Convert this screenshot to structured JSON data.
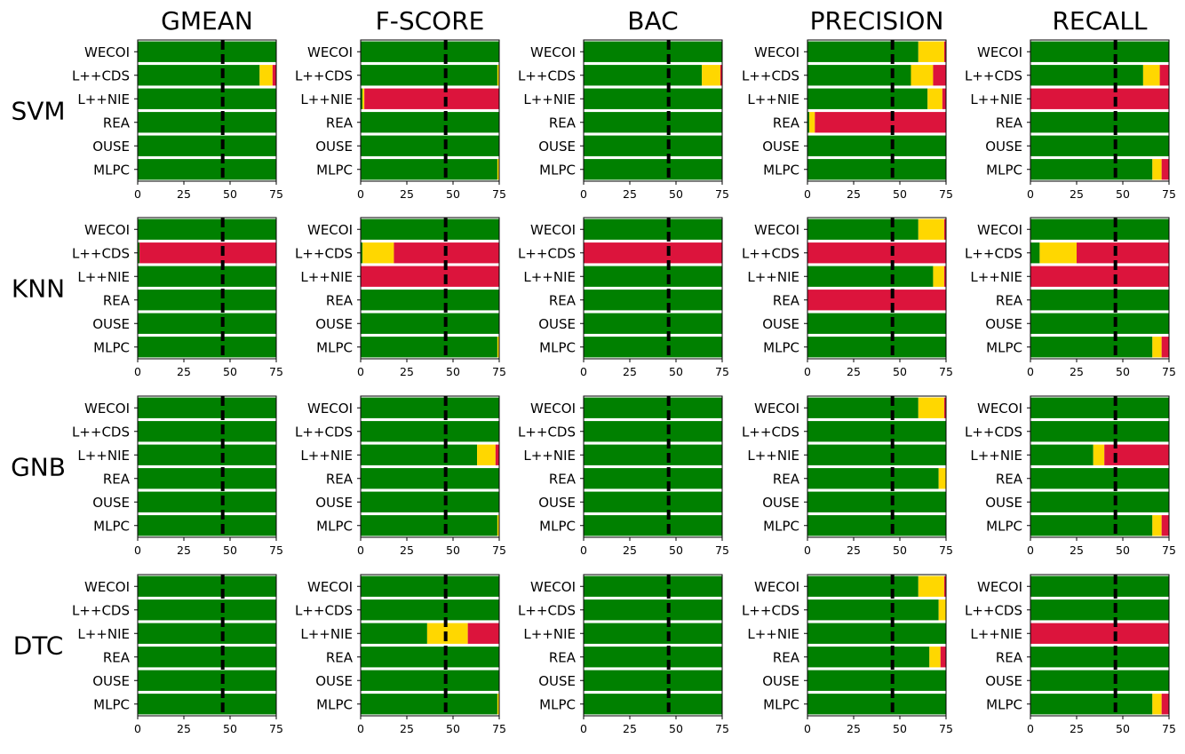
{
  "chart_data": {
    "type": "bar",
    "orientation": "horizontal-stacked",
    "columns": [
      "GMEAN",
      "F-SCORE",
      "BAC",
      "PRECISION",
      "RECALL"
    ],
    "rows": [
      "SVM",
      "KNN",
      "GNB",
      "DTC"
    ],
    "categories": [
      "WECOI",
      "L++CDS",
      "L++NIE",
      "REA",
      "OUSE",
      "MLPC"
    ],
    "segment_colors": [
      "#008000",
      "#FFD700",
      "#DC143C"
    ],
    "threshold_color": "#000000",
    "xlim": [
      0,
      75
    ],
    "xticks": [
      "0",
      "25",
      "50",
      "75"
    ],
    "threshold": 46,
    "grid": false,
    "panels": {
      "SVM": {
        "GMEAN": [
          [
            75,
            0,
            0
          ],
          [
            66,
            7,
            2
          ],
          [
            75,
            0,
            0
          ],
          [
            75,
            0,
            0
          ],
          [
            75,
            0,
            0
          ],
          [
            75,
            0,
            0
          ]
        ],
        "F-SCORE": [
          [
            75,
            0,
            0
          ],
          [
            74,
            1,
            0
          ],
          [
            1,
            1,
            73
          ],
          [
            75,
            0,
            0
          ],
          [
            75,
            0,
            0
          ],
          [
            74,
            1,
            0
          ]
        ],
        "BAC": [
          [
            75,
            0,
            0
          ],
          [
            64,
            10,
            1
          ],
          [
            75,
            0,
            0
          ],
          [
            75,
            0,
            0
          ],
          [
            75,
            0,
            0
          ],
          [
            75,
            0,
            0
          ]
        ],
        "PRECISION": [
          [
            60,
            14,
            1
          ],
          [
            56,
            12,
            7
          ],
          [
            65,
            8,
            2
          ],
          [
            1,
            3,
            71
          ],
          [
            75,
            0,
            0
          ],
          [
            75,
            0,
            0
          ]
        ],
        "RECALL": [
          [
            75,
            0,
            0
          ],
          [
            61,
            9,
            5
          ],
          [
            0,
            0,
            75
          ],
          [
            75,
            0,
            0
          ],
          [
            75,
            0,
            0
          ],
          [
            66,
            5,
            4
          ]
        ]
      },
      "KNN": {
        "GMEAN": [
          [
            75,
            0,
            0
          ],
          [
            1,
            0,
            74
          ],
          [
            75,
            0,
            0
          ],
          [
            75,
            0,
            0
          ],
          [
            75,
            0,
            0
          ],
          [
            75,
            0,
            0
          ]
        ],
        "F-SCORE": [
          [
            75,
            0,
            0
          ],
          [
            1,
            17,
            57
          ],
          [
            0,
            0,
            75
          ],
          [
            75,
            0,
            0
          ],
          [
            75,
            0,
            0
          ],
          [
            74,
            1,
            0
          ]
        ],
        "BAC": [
          [
            75,
            0,
            0
          ],
          [
            0,
            0,
            75
          ],
          [
            75,
            0,
            0
          ],
          [
            75,
            0,
            0
          ],
          [
            75,
            0,
            0
          ],
          [
            75,
            0,
            0
          ]
        ],
        "PRECISION": [
          [
            60,
            14,
            1
          ],
          [
            0,
            0,
            75
          ],
          [
            68,
            6,
            1
          ],
          [
            0,
            0,
            75
          ],
          [
            75,
            0,
            0
          ],
          [
            75,
            0,
            0
          ]
        ],
        "RECALL": [
          [
            75,
            0,
            0
          ],
          [
            5,
            20,
            50
          ],
          [
            0,
            0,
            75
          ],
          [
            75,
            0,
            0
          ],
          [
            75,
            0,
            0
          ],
          [
            66,
            5,
            4
          ]
        ]
      },
      "GNB": {
        "GMEAN": [
          [
            75,
            0,
            0
          ],
          [
            75,
            0,
            0
          ],
          [
            75,
            0,
            0
          ],
          [
            75,
            0,
            0
          ],
          [
            75,
            0,
            0
          ],
          [
            75,
            0,
            0
          ]
        ],
        "F-SCORE": [
          [
            75,
            0,
            0
          ],
          [
            75,
            0,
            0
          ],
          [
            63,
            10,
            2
          ],
          [
            75,
            0,
            0
          ],
          [
            75,
            0,
            0
          ],
          [
            74,
            1,
            0
          ]
        ],
        "BAC": [
          [
            75,
            0,
            0
          ],
          [
            75,
            0,
            0
          ],
          [
            75,
            0,
            0
          ],
          [
            75,
            0,
            0
          ],
          [
            75,
            0,
            0
          ],
          [
            75,
            0,
            0
          ]
        ],
        "PRECISION": [
          [
            60,
            14,
            1
          ],
          [
            75,
            0,
            0
          ],
          [
            75,
            0,
            0
          ],
          [
            71,
            4,
            0
          ],
          [
            75,
            0,
            0
          ],
          [
            75,
            0,
            0
          ]
        ],
        "RECALL": [
          [
            75,
            0,
            0
          ],
          [
            75,
            0,
            0
          ],
          [
            34,
            6,
            35
          ],
          [
            75,
            0,
            0
          ],
          [
            75,
            0,
            0
          ],
          [
            66,
            5,
            4
          ]
        ]
      },
      "DTC": {
        "GMEAN": [
          [
            75,
            0,
            0
          ],
          [
            75,
            0,
            0
          ],
          [
            75,
            0,
            0
          ],
          [
            75,
            0,
            0
          ],
          [
            75,
            0,
            0
          ],
          [
            75,
            0,
            0
          ]
        ],
        "F-SCORE": [
          [
            75,
            0,
            0
          ],
          [
            75,
            0,
            0
          ],
          [
            36,
            22,
            17
          ],
          [
            75,
            0,
            0
          ],
          [
            75,
            0,
            0
          ],
          [
            74,
            1,
            0
          ]
        ],
        "BAC": [
          [
            75,
            0,
            0
          ],
          [
            75,
            0,
            0
          ],
          [
            75,
            0,
            0
          ],
          [
            75,
            0,
            0
          ],
          [
            75,
            0,
            0
          ],
          [
            75,
            0,
            0
          ]
        ],
        "PRECISION": [
          [
            60,
            14,
            1
          ],
          [
            71,
            4,
            0
          ],
          [
            75,
            0,
            0
          ],
          [
            66,
            6,
            3
          ],
          [
            75,
            0,
            0
          ],
          [
            75,
            0,
            0
          ]
        ],
        "RECALL": [
          [
            75,
            0,
            0
          ],
          [
            75,
            0,
            0
          ],
          [
            0,
            0,
            75
          ],
          [
            75,
            0,
            0
          ],
          [
            75,
            0,
            0
          ],
          [
            66,
            5,
            4
          ]
        ]
      }
    }
  }
}
